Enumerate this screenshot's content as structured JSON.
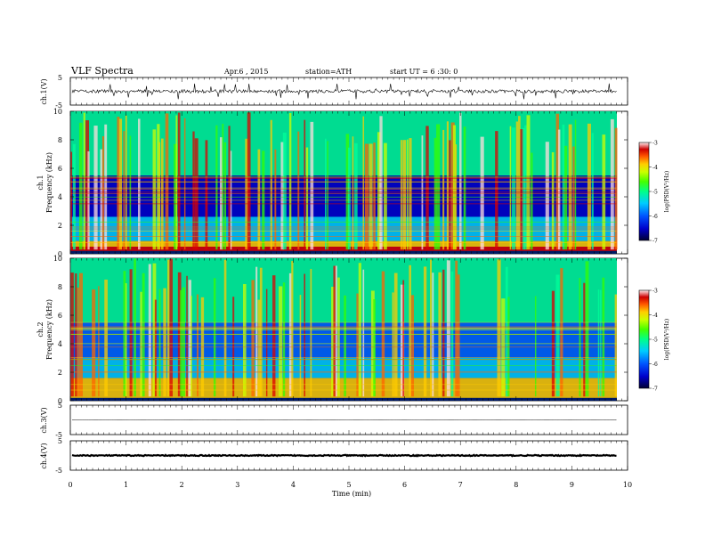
{
  "header": {
    "title": "VLF  Spectra",
    "date": "Apr.6  , 2015",
    "station": "station=ATH",
    "start": "start  UT =   6  :30: 0"
  },
  "colors": {
    "colormap": [
      "#000044",
      "#0000cc",
      "#0066ff",
      "#00ccff",
      "#00ff99",
      "#33ff00",
      "#ccff00",
      "#ffcc00",
      "#ff6600",
      "#dd0000",
      "#ffdddd"
    ]
  },
  "chart_data": [
    {
      "type": "line",
      "panel": "ch1-waveform",
      "ylabel": "ch.1(V)",
      "ylim": [
        -5,
        5
      ],
      "yticks": [
        "5",
        "-5"
      ],
      "xlim": [
        0,
        10
      ],
      "trace_level": 0,
      "description_values": {
        "baseline": 0,
        "typical_spread": 1.2
      }
    },
    {
      "type": "heatmap",
      "panel": "ch1-spectrogram",
      "ylabel": "Frequency (kHz)",
      "channel_label": "ch.1",
      "ylim": [
        0,
        10
      ],
      "yticks": [
        "0",
        "2",
        "4",
        "6",
        "8",
        "10"
      ],
      "xlim": [
        0,
        9.8
      ],
      "colorbar": {
        "label": "log(PSD(V²/Hz)",
        "range": [
          -7,
          -3
        ],
        "ticks": [
          "-3",
          "-4",
          "-5",
          "-6",
          "-7"
        ]
      },
      "bands": [
        {
          "freq_khz": [
            0.2,
            0.5
          ],
          "log_psd": -3.4
        },
        {
          "freq_khz": [
            0.5,
            0.9
          ],
          "log_psd": -4.2
        },
        {
          "freq_khz": [
            0.9,
            2.6
          ],
          "log_psd": -5.9
        },
        {
          "freq_khz": [
            2.6,
            5.5
          ],
          "log_psd": -6.4
        },
        {
          "freq_khz": [
            5.5,
            10
          ],
          "log_psd": -5.4
        }
      ]
    },
    {
      "type": "heatmap",
      "panel": "ch2-spectrogram",
      "ylabel": "Frequency (kHz)",
      "channel_label": "ch.2",
      "ylim": [
        0,
        10
      ],
      "yticks": [
        "0",
        "2",
        "4",
        "6",
        "8",
        "10"
      ],
      "xlim": [
        0,
        9.8
      ],
      "colorbar": {
        "label": "log(PSD(V²/Hz)",
        "range": [
          -7,
          -3
        ],
        "ticks": [
          "-3",
          "-4",
          "-5",
          "-6",
          "-7"
        ]
      },
      "bands": [
        {
          "freq_khz": [
            0.2,
            1.6
          ],
          "log_psd": -4.1
        },
        {
          "freq_khz": [
            1.6,
            3.0
          ],
          "log_psd": -5.7
        },
        {
          "freq_khz": [
            3.0,
            5.5
          ],
          "log_psd": -6.2
        },
        {
          "freq_khz": [
            5.5,
            10
          ],
          "log_psd": -5.3
        }
      ]
    },
    {
      "type": "line",
      "panel": "ch3-waveform",
      "ylabel": "ch.3(V)",
      "ylim": [
        -5,
        5
      ],
      "yticks": [
        "5",
        "-5"
      ],
      "xlim": [
        0,
        9.8
      ],
      "trace_level": 0
    },
    {
      "type": "line",
      "panel": "ch4-waveform",
      "ylabel": "ch.4(V)",
      "ylim": [
        -5,
        5
      ],
      "yticks": [
        "5",
        "-5"
      ],
      "xlim": [
        0,
        9.8
      ],
      "trace_level": 0
    }
  ],
  "xaxis": {
    "label": "Time  (min)",
    "ticks": [
      "0",
      "1",
      "2",
      "3",
      "4",
      "5",
      "6",
      "7",
      "8",
      "9",
      "10"
    ],
    "xlim": [
      0,
      10
    ]
  }
}
